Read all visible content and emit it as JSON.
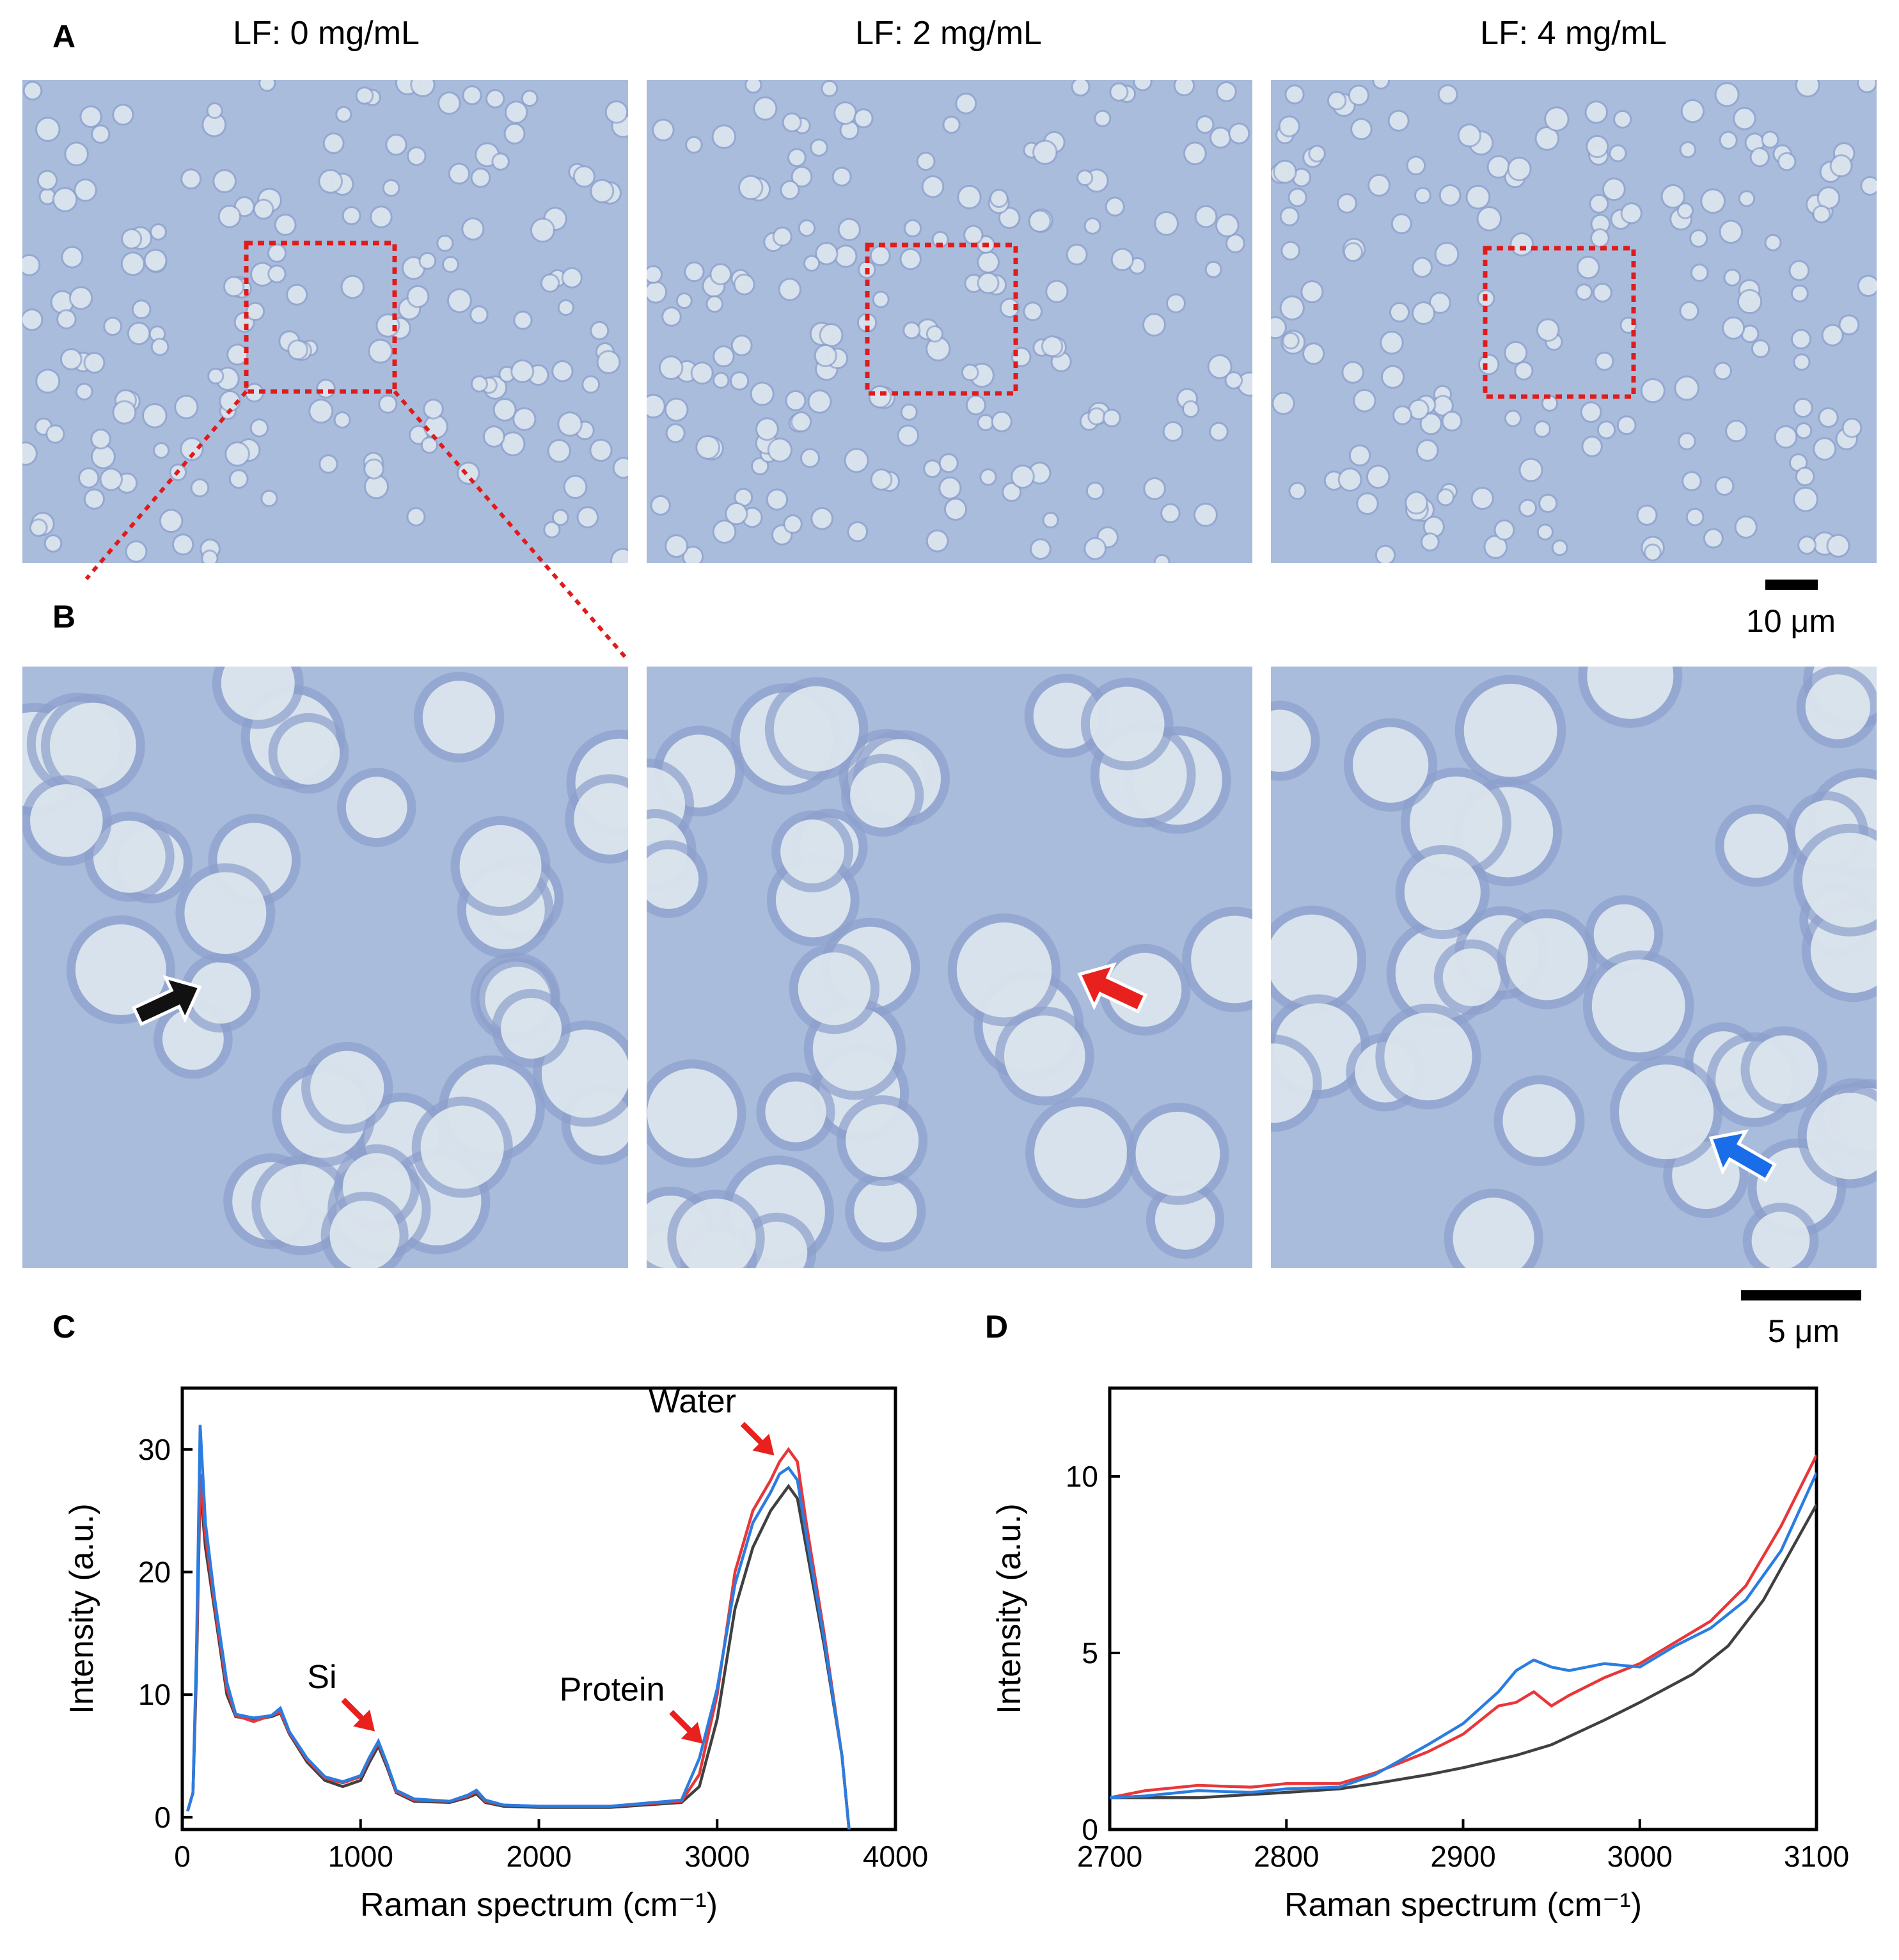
{
  "panels": {
    "a": "A",
    "b": "B",
    "c": "C",
    "d": "D"
  },
  "column_titles": [
    "LF: 0 mg/mL",
    "LF: 2 mg/mL",
    "LF: 4 mg/mL"
  ],
  "scale_bars": {
    "top": "10 μm",
    "bottom": "5 μm"
  },
  "colors": {
    "black_series": "#404040",
    "red_series": "#e8373a",
    "blue_series": "#2a7de0",
    "box_red": "#e01b1b",
    "micro_bg": "#a9bcdc",
    "cell_fill": "#dfe8ee",
    "cell_ring": "#8d9fcc"
  },
  "arrows": {
    "panel_b_left": "black",
    "panel_b_middle": "red",
    "panel_b_right": "blue"
  },
  "chart_data": [
    {
      "type": "line",
      "panel": "C",
      "xlabel": "Raman spectrum (cm⁻¹)",
      "ylabel": "Intensity (a.u.)",
      "xlim": [
        0,
        4000
      ],
      "ylim": [
        -1,
        35
      ],
      "xticks": [
        0,
        1000,
        2000,
        3000,
        4000
      ],
      "yticks": [
        0,
        10,
        20,
        30
      ],
      "annotations": [
        {
          "text": "Water",
          "x": 3320,
          "y": 29.5
        },
        {
          "text": "Si",
          "x": 1080,
          "y": 7.0
        },
        {
          "text": "Protein",
          "x": 2920,
          "y": 6.0
        }
      ],
      "series": [
        {
          "color": "black",
          "x": [
            30,
            60,
            80,
            100,
            130,
            180,
            250,
            300,
            400,
            500,
            550,
            600,
            700,
            800,
            900,
            1000,
            1050,
            1100,
            1150,
            1200,
            1300,
            1500,
            1600,
            1650,
            1700,
            1800,
            2000,
            2400,
            2800,
            2900,
            3000,
            3100,
            3200,
            3300,
            3350,
            3400,
            3450,
            3500,
            3600,
            3700,
            3740
          ],
          "y": [
            0.5,
            2,
            12,
            27,
            22,
            17,
            10,
            8.2,
            8,
            8.2,
            8.5,
            6.8,
            4.5,
            3.0,
            2.5,
            3.0,
            4.5,
            5.8,
            4.0,
            2.0,
            1.3,
            1.2,
            1.6,
            1.9,
            1.2,
            0.9,
            0.8,
            0.8,
            1.2,
            2.5,
            8,
            17,
            22,
            25,
            26,
            27,
            26,
            22,
            14,
            5,
            -1
          ]
        },
        {
          "color": "red",
          "x": [
            30,
            60,
            80,
            100,
            130,
            180,
            250,
            300,
            400,
            500,
            550,
            600,
            700,
            800,
            900,
            1000,
            1050,
            1100,
            1150,
            1200,
            1300,
            1500,
            1600,
            1650,
            1700,
            1800,
            2000,
            2400,
            2800,
            2900,
            3000,
            3100,
            3200,
            3300,
            3350,
            3400,
            3450,
            3500,
            3600,
            3700,
            3740
          ],
          "y": [
            0.5,
            2,
            13,
            28,
            23,
            17.5,
            10.5,
            8.3,
            7.8,
            8.3,
            8.6,
            6.9,
            4.7,
            3.2,
            2.8,
            3.3,
            4.8,
            6.1,
            4.2,
            2.1,
            1.4,
            1.3,
            1.7,
            2.1,
            1.3,
            1.0,
            0.9,
            0.9,
            1.3,
            3.5,
            10,
            20,
            25,
            27.5,
            29,
            30,
            29,
            24,
            15,
            5,
            -1
          ]
        },
        {
          "color": "blue",
          "x": [
            30,
            60,
            80,
            100,
            130,
            180,
            250,
            300,
            400,
            500,
            550,
            600,
            700,
            800,
            900,
            1000,
            1050,
            1100,
            1150,
            1200,
            1300,
            1500,
            1600,
            1650,
            1700,
            1800,
            2000,
            2400,
            2800,
            2900,
            3000,
            3100,
            3200,
            3300,
            3350,
            3400,
            3450,
            3500,
            3600,
            3700,
            3740
          ],
          "y": [
            0.5,
            2,
            14,
            32,
            24,
            18,
            11,
            8.4,
            8.1,
            8.3,
            8.9,
            7.0,
            4.8,
            3.3,
            2.9,
            3.4,
            4.9,
            6.2,
            4.3,
            2.2,
            1.5,
            1.3,
            1.8,
            2.2,
            1.4,
            1.0,
            0.9,
            0.9,
            1.4,
            4.8,
            10.5,
            19,
            24,
            26.5,
            28,
            28.5,
            27.5,
            23,
            14.5,
            5,
            -1
          ]
        }
      ]
    },
    {
      "type": "line",
      "panel": "D",
      "xlabel": "Raman spectrum (cm⁻¹)",
      "ylabel": "Intensity (a.u.)",
      "xlim": [
        2700,
        3100
      ],
      "ylim": [
        0,
        12.5
      ],
      "xticks": [
        2700,
        2800,
        2900,
        3000,
        3100
      ],
      "yticks": [
        0,
        5,
        10
      ],
      "series": [
        {
          "color": "black",
          "x": [
            2700,
            2750,
            2800,
            2830,
            2850,
            2880,
            2900,
            2930,
            2950,
            2980,
            3000,
            3030,
            3050,
            3070,
            3090,
            3100
          ],
          "y": [
            0.9,
            0.9,
            1.05,
            1.15,
            1.3,
            1.55,
            1.75,
            2.1,
            2.4,
            3.1,
            3.6,
            4.4,
            5.2,
            6.5,
            8.3,
            9.2
          ]
        },
        {
          "color": "red",
          "x": [
            2700,
            2720,
            2750,
            2780,
            2800,
            2830,
            2850,
            2880,
            2900,
            2920,
            2930,
            2940,
            2950,
            2960,
            2980,
            3000,
            3020,
            3040,
            3060,
            3080,
            3100
          ],
          "y": [
            0.9,
            1.1,
            1.25,
            1.2,
            1.3,
            1.3,
            1.6,
            2.2,
            2.7,
            3.5,
            3.6,
            3.9,
            3.5,
            3.8,
            4.3,
            4.7,
            5.3,
            5.9,
            6.9,
            8.6,
            10.6
          ]
        },
        {
          "color": "blue",
          "x": [
            2700,
            2720,
            2750,
            2780,
            2800,
            2830,
            2850,
            2880,
            2900,
            2920,
            2930,
            2940,
            2950,
            2960,
            2980,
            3000,
            3020,
            3040,
            3060,
            3080,
            3100
          ],
          "y": [
            0.9,
            0.95,
            1.1,
            1.05,
            1.15,
            1.2,
            1.55,
            2.4,
            3.0,
            3.9,
            4.5,
            4.8,
            4.6,
            4.5,
            4.7,
            4.6,
            5.2,
            5.7,
            6.5,
            7.9,
            10.1
          ]
        }
      ]
    }
  ]
}
